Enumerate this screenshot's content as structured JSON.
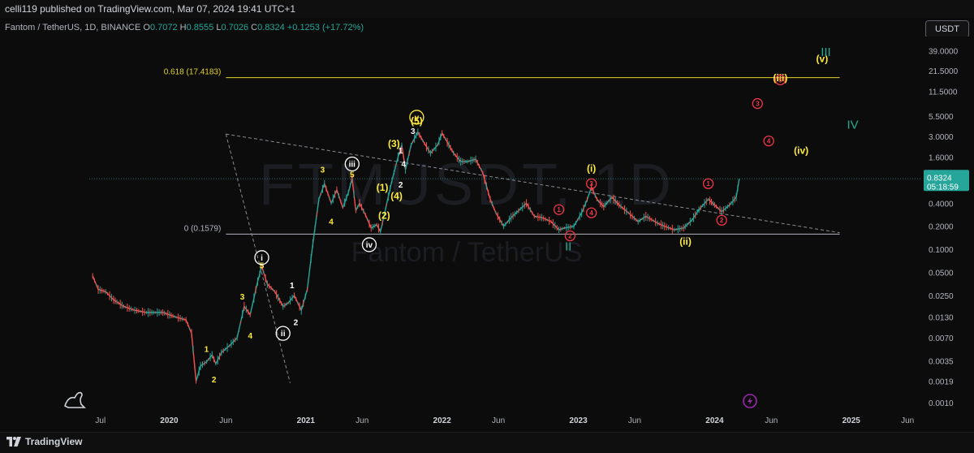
{
  "header": {
    "publisher": "celli119 published on TradingView.com, Mar 07, 2024 19:41 UTC+1"
  },
  "legend": {
    "symbol": "Fantom / TetherUS, 1D, BINANCE",
    "o_label": "O",
    "o_value": "0.7072",
    "h_label": "H",
    "h_value": "0.8555",
    "l_label": "L",
    "l_value": "0.7026",
    "c_label": "C",
    "c_value": "0.8324",
    "change": "+0.1253 (+17.72%)"
  },
  "currency_button": "USDT",
  "watermark": {
    "ticker": "FTMUSDT, 1D",
    "name": "Fantom / TetherUS"
  },
  "footer": {
    "brand": "TradingView"
  },
  "colors": {
    "up": "#26a69a",
    "down": "#ef5350",
    "yellow": "#ffeb3b",
    "white": "#ffffff",
    "red": "#f23645",
    "teal": "#22ab94",
    "fib": "#e6d32a"
  },
  "chart_data": {
    "type": "line",
    "scale": "log",
    "ylim": [
      0.0008,
      60
    ],
    "y_ticks": [
      "39.0000",
      "21.5000",
      "11.5000",
      "5.5000",
      "3.0000",
      "1.6000",
      "0.8324",
      "0.4000",
      "0.2000",
      "0.1000",
      "0.0500",
      "0.0250",
      "0.0130",
      "0.0070",
      "0.0035",
      "0.0019",
      "0.0010"
    ],
    "price_label": {
      "value": "0.8324",
      "countdown": "05:18:59"
    },
    "x_ticks": [
      "Jul",
      "2020",
      "Jun",
      "2021",
      "Jun",
      "2022",
      "Jun",
      "2023",
      "Jun",
      "2024",
      "Jun",
      "2025",
      "Jun"
    ],
    "price_path": [
      [
        "2019-06-10",
        0.045
      ],
      [
        "2019-06-25",
        0.03
      ],
      [
        "2019-07-15",
        0.028
      ],
      [
        "2019-08-05",
        0.022
      ],
      [
        "2019-09-01",
        0.018
      ],
      [
        "2019-10-01",
        0.016
      ],
      [
        "2019-11-01",
        0.015
      ],
      [
        "2019-12-15",
        0.015
      ],
      [
        "2020-01-20",
        0.013
      ],
      [
        "2020-02-15",
        0.012
      ],
      [
        "2020-03-01",
        0.008
      ],
      [
        "2020-03-13",
        0.0019
      ],
      [
        "2020-03-25",
        0.003
      ],
      [
        "2020-04-10",
        0.0034
      ],
      [
        "2020-04-25",
        0.0042
      ],
      [
        "2020-05-05",
        0.0032
      ],
      [
        "2020-05-20",
        0.0045
      ],
      [
        "2020-06-10",
        0.0055
      ],
      [
        "2020-07-01",
        0.007
      ],
      [
        "2020-07-20",
        0.018
      ],
      [
        "2020-08-05",
        0.014
      ],
      [
        "2020-08-25",
        0.038
      ],
      [
        "2020-09-05",
        0.06
      ],
      [
        "2020-09-20",
        0.035
      ],
      [
        "2020-10-10",
        0.028
      ],
      [
        "2020-11-01",
        0.018
      ],
      [
        "2020-11-15",
        0.02
      ],
      [
        "2020-12-01",
        0.025
      ],
      [
        "2020-12-20",
        0.016
      ],
      [
        "2021-01-05",
        0.03
      ],
      [
        "2021-01-20",
        0.12
      ],
      [
        "2021-02-05",
        0.45
      ],
      [
        "2021-02-20",
        0.72
      ],
      [
        "2021-03-10",
        0.4
      ],
      [
        "2021-03-25",
        0.6
      ],
      [
        "2021-04-10",
        0.35
      ],
      [
        "2021-04-25",
        0.55
      ],
      [
        "2021-05-05",
        0.85
      ],
      [
        "2021-05-15",
        0.32
      ],
      [
        "2021-05-25",
        0.4
      ],
      [
        "2021-06-10",
        0.28
      ],
      [
        "2021-06-25",
        0.19
      ],
      [
        "2021-07-10",
        0.21
      ],
      [
        "2021-07-20",
        0.17
      ],
      [
        "2021-08-05",
        0.38
      ],
      [
        "2021-08-20",
        0.8
      ],
      [
        "2021-09-05",
        1.6
      ],
      [
        "2021-09-15",
        2.3
      ],
      [
        "2021-09-25",
        1.1
      ],
      [
        "2021-10-10",
        2.3
      ],
      [
        "2021-10-28",
        3.4
      ],
      [
        "2021-11-15",
        2.4
      ],
      [
        "2021-12-01",
        1.8
      ],
      [
        "2021-12-20",
        2.3
      ],
      [
        "2022-01-01",
        3.3
      ],
      [
        "2022-01-15",
        2.5
      ],
      [
        "2022-02-01",
        1.8
      ],
      [
        "2022-02-20",
        1.4
      ],
      [
        "2022-03-10",
        1.4
      ],
      [
        "2022-04-01",
        1.5
      ],
      [
        "2022-04-20",
        1.0
      ],
      [
        "2022-05-10",
        0.45
      ],
      [
        "2022-05-25",
        0.3
      ],
      [
        "2022-06-15",
        0.2
      ],
      [
        "2022-07-05",
        0.26
      ],
      [
        "2022-07-25",
        0.32
      ],
      [
        "2022-08-15",
        0.4
      ],
      [
        "2022-09-05",
        0.27
      ],
      [
        "2022-09-25",
        0.26
      ],
      [
        "2022-10-20",
        0.23
      ],
      [
        "2022-11-10",
        0.18
      ],
      [
        "2022-11-25",
        0.19
      ],
      [
        "2022-12-20",
        0.2
      ],
      [
        "2023-01-10",
        0.3
      ],
      [
        "2023-01-25",
        0.45
      ],
      [
        "2023-02-05",
        0.65
      ],
      [
        "2023-02-20",
        0.45
      ],
      [
        "2023-03-10",
        0.36
      ],
      [
        "2023-04-01",
        0.48
      ],
      [
        "2023-04-20",
        0.38
      ],
      [
        "2023-05-15",
        0.3
      ],
      [
        "2023-06-10",
        0.23
      ],
      [
        "2023-07-01",
        0.27
      ],
      [
        "2023-08-01",
        0.22
      ],
      [
        "2023-08-20",
        0.2
      ],
      [
        "2023-09-15",
        0.18
      ],
      [
        "2023-10-10",
        0.19
      ],
      [
        "2023-11-01",
        0.24
      ],
      [
        "2023-11-20",
        0.33
      ],
      [
        "2023-12-15",
        0.45
      ],
      [
        "2024-01-01",
        0.38
      ],
      [
        "2024-01-20",
        0.31
      ],
      [
        "2024-02-10",
        0.38
      ],
      [
        "2024-02-28",
        0.48
      ],
      [
        "2024-03-07",
        0.8324
      ]
    ],
    "horizontal_levels": [
      {
        "label": "0.618 (17.4183)",
        "price": 17.4183,
        "start": "2020-06-01",
        "end": "2024-12-01",
        "color": "yellow"
      },
      {
        "label": "0 (0.1579)",
        "price": 0.1579,
        "start": "2020-06-01",
        "end": "2024-12-01",
        "color": "white"
      }
    ],
    "trend_lines": [
      {
        "from": [
          "2020-06-01",
          3.2
        ],
        "to": [
          "2020-11-20",
          0.0018
        ]
      },
      {
        "from": [
          "2020-06-01",
          3.2
        ],
        "to": [
          "2024-12-01",
          0.165
        ]
      }
    ],
    "current_price_line": 0.8324,
    "annotations": [
      {
        "text": "1",
        "date": "2020-04-10",
        "price": 0.005,
        "style": "yellow"
      },
      {
        "text": "2",
        "date": "2020-04-30",
        "price": 0.002,
        "style": "yellow"
      },
      {
        "text": "3",
        "date": "2020-07-15",
        "price": 0.024,
        "style": "yellow"
      },
      {
        "text": "4",
        "date": "2020-08-05",
        "price": 0.0075,
        "style": "yellow"
      },
      {
        "text": "5",
        "date": "2020-09-05",
        "price": 0.062,
        "style": "yellow"
      },
      {
        "text": "i",
        "date": "2020-09-05",
        "price": 0.078,
        "style": "white-circle"
      },
      {
        "text": "ii",
        "date": "2020-11-01",
        "price": 0.008,
        "style": "white-circle"
      },
      {
        "text": "1",
        "date": "2020-11-25",
        "price": 0.034,
        "style": "white"
      },
      {
        "text": "2",
        "date": "2020-12-05",
        "price": 0.0112,
        "style": "white"
      },
      {
        "text": "3",
        "date": "2021-02-15",
        "price": 1.1,
        "style": "yellow"
      },
      {
        "text": "4",
        "date": "2021-03-10",
        "price": 0.23,
        "style": "yellow"
      },
      {
        "text": "5",
        "date": "2021-05-05",
        "price": 0.95,
        "style": "yellow"
      },
      {
        "text": "iii",
        "date": "2021-05-05",
        "price": 1.3,
        "style": "white-circle"
      },
      {
        "text": "iv",
        "date": "2021-06-20",
        "price": 0.115,
        "style": "white-circle"
      },
      {
        "text": "(1)",
        "date": "2021-07-25",
        "price": 0.65,
        "style": "yellow"
      },
      {
        "text": "(2)",
        "date": "2021-07-30",
        "price": 0.28,
        "style": "yellow"
      },
      {
        "text": "(3)",
        "date": "2021-08-25",
        "price": 2.4,
        "style": "yellow"
      },
      {
        "text": "(4)",
        "date": "2021-09-01",
        "price": 0.5,
        "style": "yellow"
      },
      {
        "text": "1",
        "date": "2021-09-12",
        "price": 1.95,
        "style": "white"
      },
      {
        "text": "2",
        "date": "2021-09-12",
        "price": 0.7,
        "style": "white"
      },
      {
        "text": "4",
        "date": "2021-09-20",
        "price": 1.3,
        "style": "white"
      },
      {
        "text": "3",
        "date": "2021-10-15",
        "price": 3.5,
        "style": "white"
      },
      {
        "text": "(5)",
        "date": "2021-10-25",
        "price": 4.8,
        "style": "yellow"
      },
      {
        "text": "v",
        "date": "2021-10-25",
        "price": 5.3,
        "style": "yellow-circle"
      },
      {
        "text": "1",
        "date": "2022-11-10",
        "price": 0.33,
        "style": "red-circle"
      },
      {
        "text": "2",
        "date": "2022-12-10",
        "price": 0.15,
        "style": "red-circle"
      },
      {
        "text": "II",
        "date": "2022-12-05",
        "price": 0.11,
        "style": "teal"
      },
      {
        "text": "(i)",
        "date": "2023-02-05",
        "price": 1.15,
        "style": "yellow"
      },
      {
        "text": "3",
        "date": "2023-02-05",
        "price": 0.72,
        "style": "red-circle"
      },
      {
        "text": "4",
        "date": "2023-02-05",
        "price": 0.3,
        "style": "red-circle"
      },
      {
        "text": "(ii)",
        "date": "2023-10-15",
        "price": 0.127,
        "style": "yellow"
      },
      {
        "text": "1",
        "date": "2023-12-15",
        "price": 0.72,
        "style": "red-circle"
      },
      {
        "text": "2",
        "date": "2024-01-20",
        "price": 0.24,
        "style": "red-circle"
      },
      {
        "text": "3",
        "date": "2024-04-25",
        "price": 8.0,
        "style": "red-circle"
      },
      {
        "text": "4",
        "date": "2024-05-25",
        "price": 2.6,
        "style": "red-circle"
      },
      {
        "text": "(iii)",
        "date": "2024-06-25",
        "price": 17.5,
        "style": "yellow"
      },
      {
        "text": "5",
        "date": "2024-06-25",
        "price": 16.3,
        "style": "red-circle"
      },
      {
        "text": "(iv)",
        "date": "2024-08-20",
        "price": 1.95,
        "style": "yellow"
      },
      {
        "text": "(v)",
        "date": "2024-10-15",
        "price": 31.0,
        "style": "yellow"
      },
      {
        "text": "III",
        "date": "2024-10-25",
        "price": 38.0,
        "style": "teal"
      },
      {
        "text": "IV",
        "date": "2025-01-05",
        "price": 4.3,
        "style": "teal"
      }
    ]
  }
}
